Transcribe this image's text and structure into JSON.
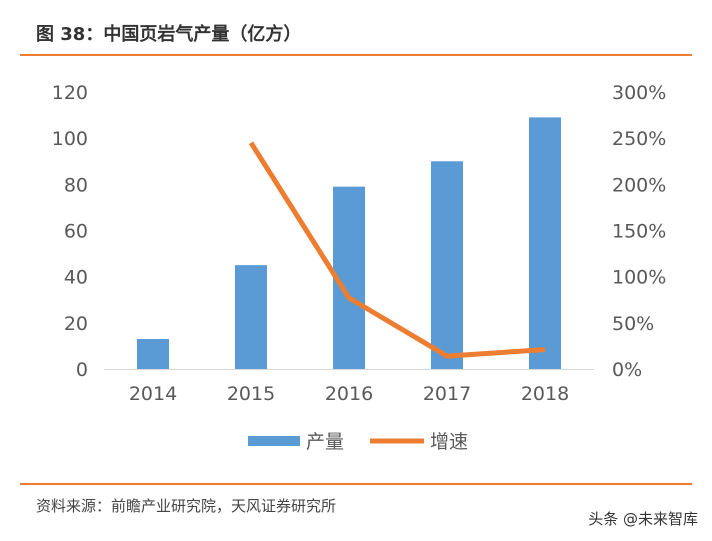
{
  "title": "图 38：中国页岩气产量（亿方）",
  "source": "资料来源：前瞻产业研究院，天风证券研究所",
  "watermark": "头条 @未来智库",
  "colors": {
    "bar": "#5B9BD5",
    "line": "#ED7D31",
    "rule": "#ED7D31"
  },
  "chart_data": {
    "type": "bar+line",
    "categories": [
      "2014",
      "2015",
      "2016",
      "2017",
      "2018"
    ],
    "series": [
      {
        "name": "产量",
        "type": "bar",
        "axis": "left",
        "values": [
          13,
          45,
          79,
          90,
          109
        ]
      },
      {
        "name": "增速",
        "type": "line",
        "axis": "right",
        "values": [
          null,
          245,
          77,
          14,
          21
        ]
      }
    ],
    "y_left": {
      "range": [
        0,
        120
      ],
      "ticks": [
        "0",
        "20",
        "40",
        "60",
        "80",
        "100",
        "120"
      ]
    },
    "y_right": {
      "range": [
        0,
        300
      ],
      "ticks": [
        "0%",
        "50%",
        "100%",
        "150%",
        "200%",
        "250%",
        "300%"
      ]
    },
    "grid": false,
    "legend": "bottom"
  }
}
